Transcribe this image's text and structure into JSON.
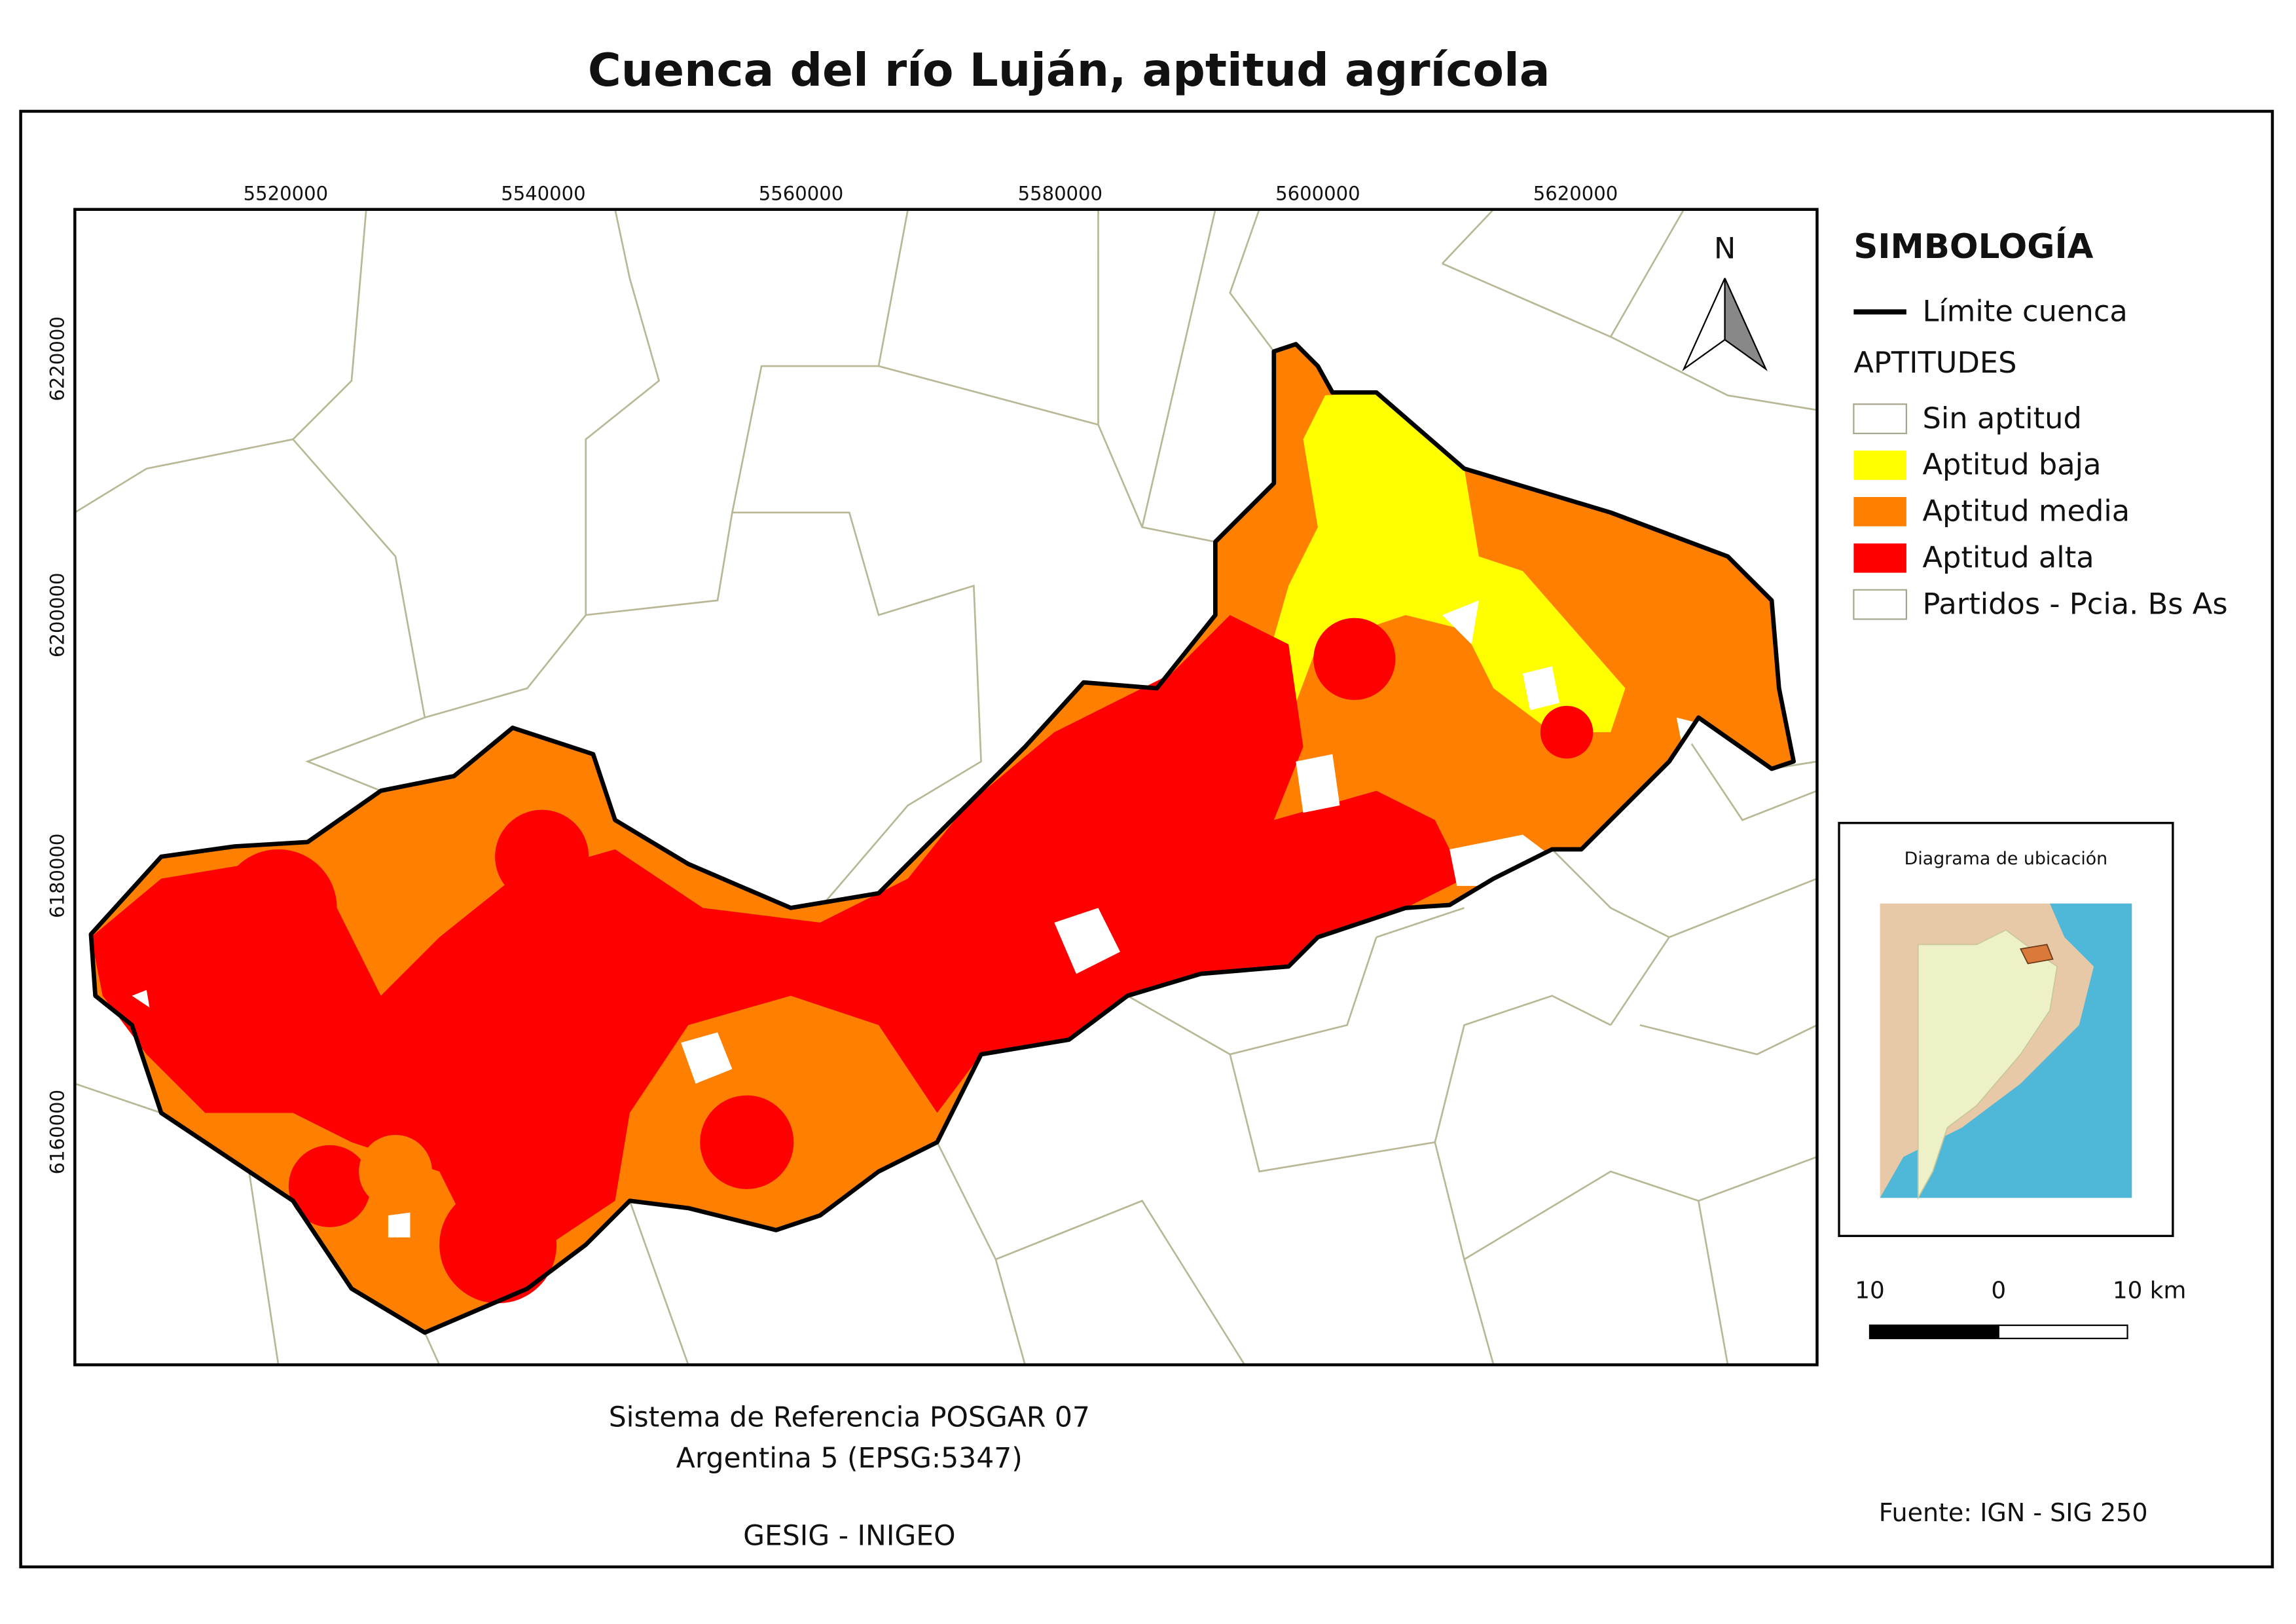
{
  "header": {
    "title": "Cuenca del río Luján, aptitud agrícola"
  },
  "map": {
    "x_labels": [
      "5520000",
      "5540000",
      "5560000",
      "5580000",
      "5600000",
      "5620000"
    ],
    "y_labels": [
      "6220000",
      "6200000",
      "6180000",
      "6160000"
    ],
    "north": "N"
  },
  "legend": {
    "title": "SIMBOLOGÍA",
    "boundary": "Límite cuenca",
    "group": "APTITUDES",
    "items": [
      {
        "label": "Sin aptitud",
        "color": "#ffffff"
      },
      {
        "label": "Aptitud baja",
        "color": "#ffff00"
      },
      {
        "label": "Aptitud media",
        "color": "#ff8000"
      },
      {
        "label": "Aptitud alta",
        "color": "#ff0000"
      },
      {
        "label": "Partidos - Pcia. Bs As",
        "color": "#ffffff"
      }
    ]
  },
  "inset": {
    "title": "Diagrama de ubicación"
  },
  "scale_bar": {
    "labels": [
      "10",
      "0",
      "10 km"
    ]
  },
  "footer": {
    "reference": [
      "Sistema de Referencia POSGAR 07",
      "Argentina 5 (EPSG:5347)"
    ],
    "credit": "GESIG - INIGEO",
    "source": "Fuente: IGN - SIG 250"
  }
}
